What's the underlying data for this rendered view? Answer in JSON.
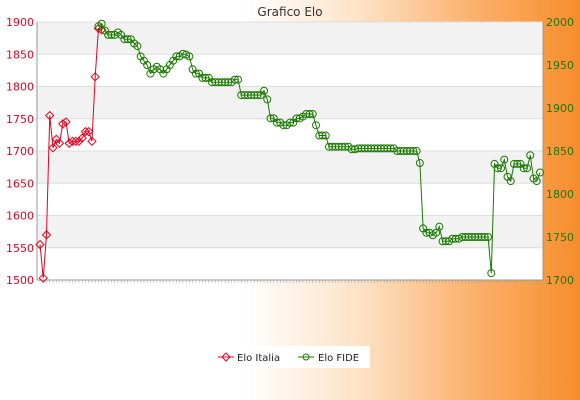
{
  "chart_data": {
    "type": "line",
    "title": "Grafico Elo",
    "y_left": {
      "ticks": [
        1500,
        1550,
        1600,
        1650,
        1700,
        1750,
        1800,
        1850,
        1900
      ],
      "range": [
        1500,
        1900
      ]
    },
    "y_right": {
      "ticks": [
        1700,
        1750,
        1800,
        1850,
        1900,
        1950,
        2000
      ],
      "range": [
        1700,
        2000
      ]
    },
    "grid": true,
    "legend_position": "bottom",
    "series": [
      {
        "name": "Elo Italia",
        "axis": "left",
        "color": "#e8001c",
        "marker": "diamond",
        "values": [
          1555,
          1503,
          1570,
          1755,
          1705,
          1718,
          1712,
          1742,
          1745,
          1712,
          1715,
          1715,
          1715,
          1720,
          1730,
          1730,
          1715,
          1815,
          1890,
          1888
        ]
      },
      {
        "name": "Elo FIDE",
        "axis": "right",
        "color": "#1a7a00",
        "marker": "circle",
        "start_index": 18,
        "values": [
          1995,
          1998,
          1990,
          1985,
          1985,
          1985,
          1988,
          1985,
          1980,
          1980,
          1980,
          1975,
          1972,
          1960,
          1955,
          1950,
          1940,
          1945,
          1948,
          1945,
          1940,
          1945,
          1950,
          1955,
          1960,
          1960,
          1963,
          1962,
          1960,
          1945,
          1940,
          1940,
          1935,
          1935,
          1935,
          1930,
          1930,
          1930,
          1930,
          1930,
          1930,
          1930,
          1933,
          1933,
          1915,
          1915,
          1915,
          1915,
          1915,
          1915,
          1915,
          1920,
          1910,
          1888,
          1888,
          1883,
          1883,
          1880,
          1880,
          1883,
          1883,
          1888,
          1888,
          1890,
          1893,
          1893,
          1893,
          1880,
          1868,
          1868,
          1868,
          1855,
          1855,
          1855,
          1855,
          1855,
          1855,
          1855,
          1852,
          1852,
          1853,
          1853,
          1853,
          1853,
          1853,
          1853,
          1853,
          1853,
          1853,
          1853,
          1853,
          1853,
          1850,
          1850,
          1850,
          1850,
          1850,
          1850,
          1850,
          1836,
          1760,
          1755,
          1755,
          1752,
          1755,
          1762,
          1745,
          1745,
          1745,
          1748,
          1748,
          1748,
          1750,
          1750,
          1750,
          1750,
          1750,
          1750,
          1750,
          1750,
          1750,
          1708,
          1835,
          1830,
          1830,
          1840,
          1820,
          1815,
          1835,
          1835,
          1835,
          1830,
          1830,
          1845,
          1818,
          1815,
          1825
        ]
      }
    ]
  }
}
